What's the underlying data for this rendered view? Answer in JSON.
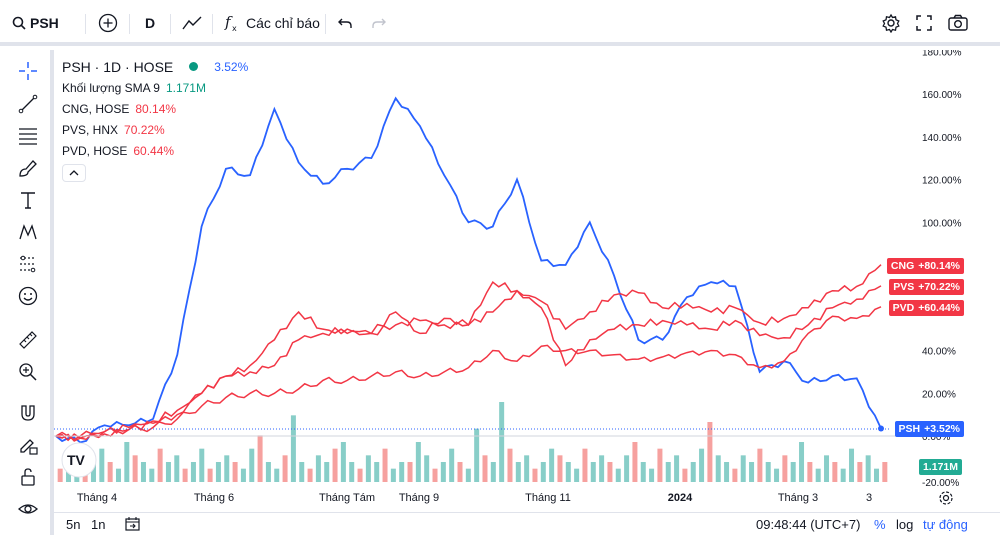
{
  "toolbar": {
    "symbol": "PSH",
    "interval": "D",
    "indicators_label": "Các chỉ báo"
  },
  "legend": {
    "main_title": "PSH · 1D · HOSE",
    "main_change": "3.52%",
    "volume_label": "Khối lượng SMA 9",
    "volume_value": "1.171M",
    "compare": [
      {
        "label": "CNG, HOSE",
        "value": "80.14%"
      },
      {
        "label": "PVS, HNX",
        "value": "70.22%"
      },
      {
        "label": "PVD, HOSE",
        "value": "60.44%"
      }
    ]
  },
  "colors": {
    "psh": "#2962ff",
    "compare": "#f23645",
    "vol_up": "#26a69a",
    "vol_down": "#ef5350"
  },
  "axis": {
    "y_ticks": [
      "180.00%",
      "160.00%",
      "140.00%",
      "120.00%",
      "100.00%",
      "40.00%",
      "20.00%",
      "0.00%",
      "-20.00%"
    ],
    "x_ticks": [
      "Tháng 4",
      "Tháng 6",
      "Tháng Tám",
      "Tháng 9",
      "Tháng 11",
      "2024",
      "Tháng 3",
      "3"
    ]
  },
  "price_tags": [
    {
      "symbol": "CNG",
      "value": "+80.14%"
    },
    {
      "symbol": "PVS",
      "value": "+70.22%"
    },
    {
      "symbol": "PVD",
      "value": "+60.44%"
    },
    {
      "symbol": "PSH",
      "value": "+3.52%"
    }
  ],
  "volume_tag": "1.171M",
  "bottom": {
    "range_5d": "5n",
    "range_1d": "1n",
    "time": "09:48:44 (UTC+7)",
    "percent": "%",
    "log": "log",
    "auto": "tự động"
  },
  "chart_data": {
    "type": "line",
    "ylabel_unit": "%",
    "ylim": [
      -20,
      180
    ],
    "series": [
      {
        "name": "PSH",
        "values": [
          0,
          -3,
          5,
          5,
          8,
          38,
          98,
          125,
          122,
          153,
          128,
          118,
          125,
          130,
          158,
          145,
          122,
          100,
          98,
          120,
          82,
          80,
          100,
          75,
          45,
          45,
          65,
          72,
          70,
          30,
          35,
          25,
          28,
          27,
          3.52
        ]
      },
      {
        "name": "CNG",
        "values": [
          0,
          -1,
          2,
          4,
          7,
          12,
          20,
          28,
          30,
          33,
          45,
          48,
          50,
          48,
          58,
          48,
          55,
          52,
          72,
          68,
          63,
          50,
          58,
          66,
          67,
          60,
          62,
          58,
          60,
          53,
          55,
          60,
          68,
          70,
          80.14
        ]
      },
      {
        "name": "PVS",
        "values": [
          0,
          -1,
          1,
          3,
          6,
          10,
          20,
          28,
          33,
          45,
          58,
          50,
          48,
          48,
          52,
          54,
          52,
          52,
          58,
          68,
          60,
          33,
          45,
          50,
          52,
          54,
          52,
          50,
          54,
          47,
          46,
          52,
          60,
          64,
          70.22
        ]
      },
      {
        "name": "PVD",
        "values": [
          0,
          0,
          2,
          3,
          4,
          8,
          14,
          18,
          20,
          20,
          22,
          26,
          26,
          28,
          30,
          28,
          30,
          32,
          40,
          35,
          42,
          40,
          40,
          38,
          36,
          37,
          39,
          40,
          38,
          32,
          35,
          48,
          56,
          55,
          60.44
        ]
      }
    ],
    "volume_series": {
      "name": "Khối lượng",
      "values": [
        2,
        3,
        2,
        4,
        3,
        5,
        3,
        2,
        6,
        4,
        3,
        2,
        5,
        3,
        4,
        2,
        3,
        5,
        2,
        3,
        4,
        3,
        2,
        5,
        7,
        3,
        2,
        4,
        10,
        3,
        2,
        4,
        3,
        5,
        6,
        3,
        2,
        4,
        3,
        5,
        2,
        3,
        3,
        6,
        4,
        2,
        3,
        5,
        3,
        2,
        8,
        4,
        3,
        12,
        5,
        3,
        4,
        2,
        3,
        5,
        4,
        3,
        2,
        5,
        3,
        4,
        3,
        2,
        4,
        6,
        3,
        2,
        5,
        3,
        4,
        2,
        3,
        5,
        9,
        4,
        3,
        2,
        4,
        3,
        5,
        3,
        2,
        4,
        3,
        6,
        3,
        2,
        4,
        3,
        2,
        5,
        3,
        4,
        2,
        3
      ]
    }
  }
}
